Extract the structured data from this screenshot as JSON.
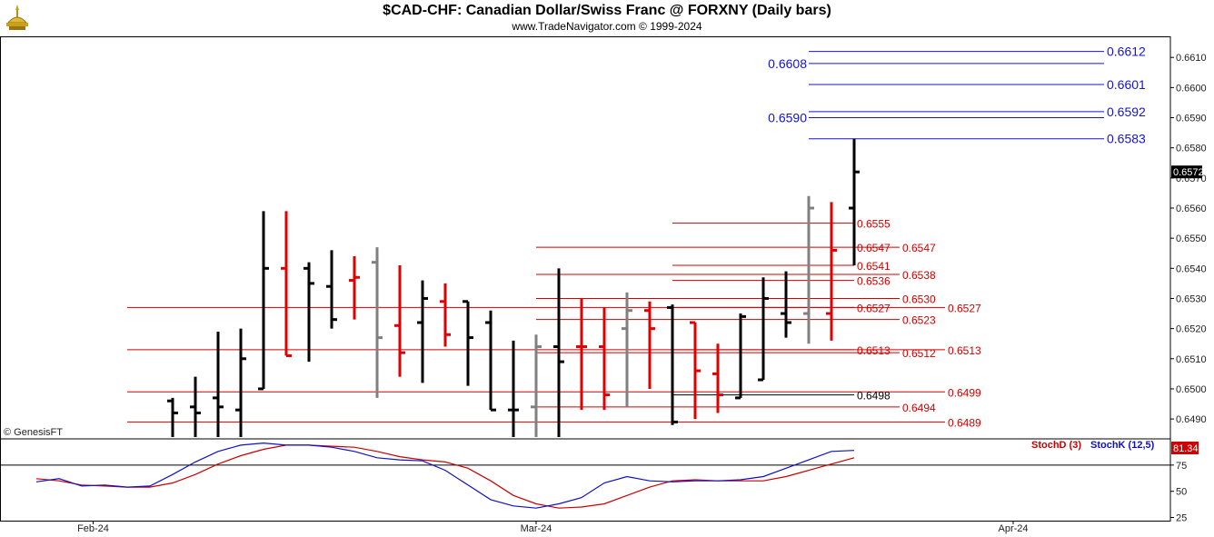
{
  "header": {
    "title": "$CAD-CHF:  Canadian Dollar/Swiss Franc @ FORXNY  (Daily bars)",
    "subtitle": "www.TradeNavigator.com © 1999-2024"
  },
  "watermark": "© GenesisFT",
  "colors": {
    "bull": "#000000",
    "bear": "#e00000",
    "neutral": "#808080",
    "level_red": "#d00000",
    "level_black": "#000000",
    "level_blue": "#1414d2",
    "stoch_d": "#cc0000",
    "stoch_k": "#1010c8",
    "last_price_bg": "#000000",
    "stoch_badge_bg": "#d00000",
    "axis_bg": "#ffffff"
  },
  "chart_data": [
    {
      "type": "ohlc",
      "title": "$CAD-CHF:  Canadian Dollar/Swiss Franc @ FORXNY  (Daily bars)",
      "ylim": [
        0.6484,
        0.6617
      ],
      "yticks": [
        0.649,
        0.65,
        0.651,
        0.652,
        0.653,
        0.654,
        0.655,
        0.656,
        0.657,
        0.658,
        0.659,
        0.66,
        0.661
      ],
      "ytick_labels": [
        "0.6490",
        "0.6500",
        "0.6510",
        "0.6520",
        "0.6530",
        "0.6540",
        "0.6550",
        "0.6560",
        "0.6570",
        "0.6580",
        "0.6590",
        "0.6600",
        "0.6610"
      ],
      "last_price": "0.6572",
      "x_labels": [
        {
          "label": "Feb-24",
          "bar_index": -2.5
        },
        {
          "label": "Mar-24",
          "bar_index": 17
        },
        {
          "label": "Apr-24",
          "bar_index": 38
        }
      ],
      "bars": [
        {
          "d": 1,
          "o": 0.6496,
          "h": 0.6497,
          "l": 0.6484,
          "c": 0.6492,
          "col": "bull"
        },
        {
          "d": 2,
          "o": 0.6494,
          "h": 0.6504,
          "l": 0.6484,
          "c": 0.6492,
          "col": "bull"
        },
        {
          "d": 3,
          "o": 0.6497,
          "h": 0.6519,
          "l": 0.6484,
          "c": 0.6494,
          "col": "bull"
        },
        {
          "d": 4,
          "o": 0.6493,
          "h": 0.652,
          "l": 0.6484,
          "c": 0.651,
          "col": "bull"
        },
        {
          "d": 5,
          "o": 0.65,
          "h": 0.6559,
          "l": 0.65,
          "c": 0.654,
          "col": "bull"
        },
        {
          "d": 6,
          "o": 0.654,
          "h": 0.6559,
          "l": 0.6511,
          "c": 0.6511,
          "col": "bear"
        },
        {
          "d": 7,
          "o": 0.654,
          "h": 0.6542,
          "l": 0.6509,
          "c": 0.6535,
          "col": "bull"
        },
        {
          "d": 8,
          "o": 0.6534,
          "h": 0.6546,
          "l": 0.652,
          "c": 0.6523,
          "col": "bull"
        },
        {
          "d": 9,
          "o": 0.6536,
          "h": 0.6544,
          "l": 0.6523,
          "c": 0.6537,
          "col": "bear"
        },
        {
          "d": 10,
          "o": 0.6542,
          "h": 0.6547,
          "l": 0.6497,
          "c": 0.6517,
          "col": "neutral"
        },
        {
          "d": 11,
          "o": 0.6521,
          "h": 0.6541,
          "l": 0.6504,
          "c": 0.6512,
          "col": "bear"
        },
        {
          "d": 12,
          "o": 0.6522,
          "h": 0.6536,
          "l": 0.6502,
          "c": 0.653,
          "col": "bull"
        },
        {
          "d": 13,
          "o": 0.6529,
          "h": 0.6535,
          "l": 0.6514,
          "c": 0.6518,
          "col": "bear"
        },
        {
          "d": 14,
          "o": 0.6529,
          "h": 0.6529,
          "l": 0.6501,
          "c": 0.6517,
          "col": "bull"
        },
        {
          "d": 15,
          "o": 0.6522,
          "h": 0.6526,
          "l": 0.6493,
          "c": 0.6493,
          "col": "bull"
        },
        {
          "d": 16,
          "o": 0.6493,
          "h": 0.6516,
          "l": 0.6484,
          "c": 0.6493,
          "col": "bull"
        },
        {
          "d": 17,
          "o": 0.6494,
          "h": 0.6518,
          "l": 0.6484,
          "c": 0.6514,
          "col": "neutral"
        },
        {
          "d": 18,
          "o": 0.6514,
          "h": 0.654,
          "l": 0.6484,
          "c": 0.6509,
          "col": "bull"
        },
        {
          "d": 19,
          "o": 0.6514,
          "h": 0.653,
          "l": 0.6493,
          "c": 0.6514,
          "col": "bear"
        },
        {
          "d": 20,
          "o": 0.6514,
          "h": 0.6527,
          "l": 0.6493,
          "c": 0.6498,
          "col": "bear"
        },
        {
          "d": 21,
          "o": 0.652,
          "h": 0.6532,
          "l": 0.6494,
          "c": 0.6526,
          "col": "neutral"
        },
        {
          "d": 22,
          "o": 0.6526,
          "h": 0.6529,
          "l": 0.65,
          "c": 0.652,
          "col": "bear"
        },
        {
          "d": 23,
          "o": 0.6527,
          "h": 0.6528,
          "l": 0.6488,
          "c": 0.6489,
          "col": "bull"
        },
        {
          "d": 24,
          "o": 0.6522,
          "h": 0.6522,
          "l": 0.649,
          "c": 0.6506,
          "col": "bear"
        },
        {
          "d": 25,
          "o": 0.6505,
          "h": 0.6515,
          "l": 0.6492,
          "c": 0.6498,
          "col": "bear"
        },
        {
          "d": 26,
          "o": 0.6497,
          "h": 0.6525,
          "l": 0.6497,
          "c": 0.6524,
          "col": "bull"
        },
        {
          "d": 27,
          "o": 0.6503,
          "h": 0.6537,
          "l": 0.6503,
          "c": 0.653,
          "col": "bull"
        },
        {
          "d": 28,
          "o": 0.6525,
          "h": 0.6539,
          "l": 0.6517,
          "c": 0.6522,
          "col": "bull"
        },
        {
          "d": 29,
          "o": 0.6525,
          "h": 0.6564,
          "l": 0.6515,
          "c": 0.656,
          "col": "neutral"
        },
        {
          "d": 30,
          "o": 0.6525,
          "h": 0.6562,
          "l": 0.6516,
          "c": 0.6546,
          "col": "bear"
        },
        {
          "d": 31,
          "o": 0.656,
          "h": 0.6583,
          "l": 0.6541,
          "c": 0.6572,
          "col": "bull"
        }
      ],
      "levels": [
        {
          "value": 0.6612,
          "label": "0.6612",
          "color": "blue",
          "from": 29,
          "to": 42,
          "label_at": "right-of-line"
        },
        {
          "value": 0.6608,
          "label": "0.6608",
          "color": "blue",
          "from": 29,
          "to": 42,
          "label_at": "left-of-line"
        },
        {
          "value": 0.6601,
          "label": "0.6601",
          "color": "blue",
          "from": 29,
          "to": 42,
          "label_at": "right-of-line"
        },
        {
          "value": 0.6592,
          "label": "0.6592",
          "color": "blue",
          "from": 29,
          "to": 42,
          "label_at": "right-of-line"
        },
        {
          "value": 0.659,
          "label": "0.6590",
          "color": "blue",
          "from": 29,
          "to": 42,
          "label_at": "left-of-line"
        },
        {
          "value": 0.6583,
          "label": "0.6583",
          "color": "blue",
          "from": 29,
          "to": 42,
          "label_at": "right-of-line"
        },
        {
          "value": 0.6555,
          "label": "0.6555",
          "color": "red",
          "from": 23,
          "to": 31,
          "label_at": "right-of-line"
        },
        {
          "value": 0.6547,
          "label": "0.6547",
          "color": "red",
          "from": 17,
          "to": 31,
          "label_at": "right-of-line"
        },
        {
          "value": 0.6547,
          "label": "0.6547",
          "color": "red",
          "from": 31,
          "to": 33,
          "label_at": "right-of-line"
        },
        {
          "value": 0.6541,
          "label": "0.6541",
          "color": "red",
          "from": 23,
          "to": 31,
          "label_at": "right-of-line"
        },
        {
          "value": 0.6538,
          "label": "0.6538",
          "color": "red",
          "from": 17,
          "to": 33,
          "label_at": "right-of-line"
        },
        {
          "value": 0.6536,
          "label": "0.6536",
          "color": "red",
          "from": 23,
          "to": 31,
          "label_at": "right-of-line"
        },
        {
          "value": 0.653,
          "label": "0.6530",
          "color": "red",
          "from": 17,
          "to": 33,
          "label_at": "right-of-line"
        },
        {
          "value": 0.6527,
          "label": "0.6527",
          "color": "red",
          "from": -1,
          "to": 35,
          "label_at": "right-of-line"
        },
        {
          "value": 0.6527,
          "label": "0.6527",
          "color": "red",
          "from": 23,
          "to": 31,
          "label_at": "right-of-line"
        },
        {
          "value": 0.6523,
          "label": "0.6523",
          "color": "red",
          "from": 17,
          "to": 33,
          "label_at": "right-of-line"
        },
        {
          "value": 0.6513,
          "label": "0.6513",
          "color": "red",
          "from": -1,
          "to": 35,
          "label_at": "right-of-line"
        },
        {
          "value": 0.6513,
          "label": "0.6513",
          "color": "red",
          "from": 23,
          "to": 31,
          "label_at": "right-of-line"
        },
        {
          "value": 0.6512,
          "label": "0.6512",
          "color": "red",
          "from": 17,
          "to": 33,
          "label_at": "right-of-line"
        },
        {
          "value": 0.6499,
          "label": "0.6499",
          "color": "red",
          "from": -1,
          "to": 35,
          "label_at": "right-of-line"
        },
        {
          "value": 0.6498,
          "label": "0.6498",
          "color": "black",
          "from": 23,
          "to": 31,
          "label_at": "right-of-line"
        },
        {
          "value": 0.6494,
          "label": "0.6494",
          "color": "red",
          "from": 17,
          "to": 33,
          "label_at": "right-of-line"
        },
        {
          "value": 0.6489,
          "label": "0.6489",
          "color": "red",
          "from": -1,
          "to": 35,
          "label_at": "right-of-line"
        }
      ]
    },
    {
      "type": "line",
      "title": "",
      "ylim": [
        22,
        100
      ],
      "yticks": [
        25,
        50,
        75
      ],
      "ytick_labels": [
        "25",
        "50",
        "75"
      ],
      "legend": [
        "StochD (3)",
        "StochK (12,5)"
      ],
      "last_value": "81.34",
      "x": [
        -5,
        -4,
        -3,
        -2,
        -1,
        0,
        1,
        2,
        3,
        4,
        5,
        6,
        7,
        8,
        9,
        10,
        11,
        12,
        13,
        14,
        15,
        16,
        17,
        18,
        19,
        20,
        21,
        22,
        23,
        24,
        25,
        26,
        27,
        28,
        29,
        30,
        31
      ],
      "series": [
        {
          "name": "StochD (3)",
          "color": "stoch_d",
          "values": [
            62,
            60,
            56,
            55,
            54,
            54,
            58,
            66,
            76,
            84,
            90,
            94,
            94,
            93,
            92,
            88,
            83,
            80,
            78,
            72,
            60,
            46,
            38,
            34,
            35,
            38,
            46,
            54,
            60,
            61,
            60,
            60,
            60,
            64,
            70,
            76,
            82
          ]
        },
        {
          "name": "StochK (12,5)",
          "color": "stoch_k",
          "values": [
            59,
            62,
            55,
            56,
            54,
            55,
            66,
            78,
            88,
            94,
            96,
            94,
            94,
            92,
            88,
            82,
            80,
            79,
            70,
            56,
            42,
            36,
            34,
            38,
            44,
            58,
            64,
            60,
            59,
            60,
            60,
            61,
            64,
            72,
            80,
            88,
            89
          ]
        }
      ]
    }
  ]
}
